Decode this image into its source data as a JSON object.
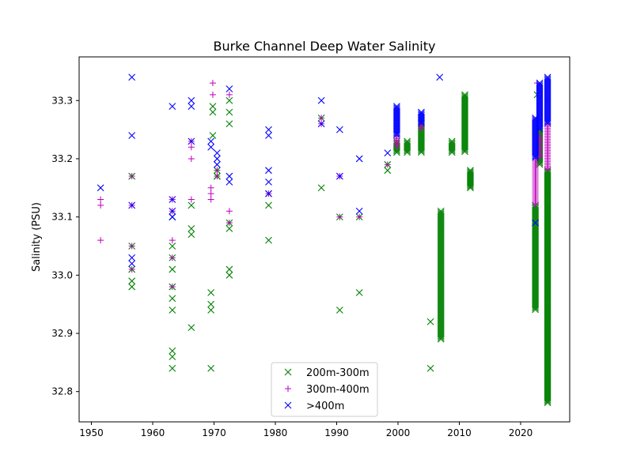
{
  "chart_data": {
    "type": "scatter",
    "title": "Burke Channel Deep Water Salinity",
    "xlabel": "",
    "ylabel": "Salinity (PSU)",
    "xlim": [
      1948,
      2028
    ],
    "ylim": [
      32.748,
      33.375
    ],
    "x_ticks": [
      1950,
      1960,
      1970,
      1980,
      1990,
      2000,
      2010,
      2020
    ],
    "x_tick_labels": [
      "1950",
      "1960",
      "1970",
      "1980",
      "1990",
      "2000",
      "2010",
      "2020"
    ],
    "y_ticks": [
      32.8,
      32.9,
      33.0,
      33.1,
      33.2,
      33.3
    ],
    "y_tick_labels": [
      "32.8",
      "32.9",
      "33.0",
      "33.1",
      "33.2",
      "33.3"
    ],
    "grid": false,
    "legend_position": "lower center",
    "series": [
      {
        "name": "200m-300m",
        "marker": "x",
        "color": "#008000",
        "points": [
          [
            1956.6,
            33.05
          ],
          [
            1956.6,
            33.01
          ],
          [
            1956.6,
            32.99
          ],
          [
            1956.6,
            32.98
          ],
          [
            1956.6,
            33.17
          ],
          [
            1963.2,
            33.05
          ],
          [
            1963.2,
            33.03
          ],
          [
            1963.2,
            33.01
          ],
          [
            1963.2,
            32.98
          ],
          [
            1963.2,
            32.96
          ],
          [
            1963.2,
            32.94
          ],
          [
            1963.2,
            32.87
          ],
          [
            1963.2,
            32.86
          ],
          [
            1963.2,
            32.84
          ],
          [
            1963.2,
            33.1
          ],
          [
            1966.3,
            33.08
          ],
          [
            1966.3,
            33.07
          ],
          [
            1966.3,
            32.91
          ],
          [
            1966.3,
            33.12
          ],
          [
            1969.5,
            32.97
          ],
          [
            1969.5,
            32.95
          ],
          [
            1969.5,
            32.94
          ],
          [
            1969.5,
            32.84
          ],
          [
            1969.8,
            33.29
          ],
          [
            1969.8,
            33.28
          ],
          [
            1969.8,
            33.24
          ],
          [
            1970.5,
            33.18
          ],
          [
            1970.5,
            33.17
          ],
          [
            1970.5,
            33.17
          ],
          [
            1972.5,
            33.3
          ],
          [
            1972.5,
            33.28
          ],
          [
            1972.5,
            33.26
          ],
          [
            1972.5,
            33.09
          ],
          [
            1972.5,
            33.08
          ],
          [
            1972.5,
            33.01
          ],
          [
            1972.5,
            33.0
          ],
          [
            1978.9,
            33.14
          ],
          [
            1978.9,
            33.12
          ],
          [
            1978.9,
            33.06
          ],
          [
            1987.5,
            33.27
          ],
          [
            1987.5,
            33.15
          ],
          [
            1990.5,
            33.1
          ],
          [
            1990.5,
            32.94
          ],
          [
            1993.7,
            33.1
          ],
          [
            1993.7,
            32.97
          ],
          [
            1998.3,
            33.19
          ],
          [
            1998.3,
            33.18
          ],
          [
            2005.3,
            32.92
          ],
          [
            2005.3,
            32.84
          ],
          [
            2022.7,
            33.31
          ]
        ],
        "vertical_clusters": [
          {
            "x": 1999.8,
            "y_min": 33.21,
            "y_max": 33.23
          },
          {
            "x": 2001.5,
            "y_min": 33.21,
            "y_max": 33.23
          },
          {
            "x": 2003.8,
            "y_min": 33.21,
            "y_max": 33.26
          },
          {
            "x": 2007.0,
            "y_min": 32.89,
            "y_max": 33.11
          },
          {
            "x": 2008.8,
            "y_min": 33.21,
            "y_max": 33.23
          },
          {
            "x": 2010.9,
            "y_min": 33.21,
            "y_max": 33.31
          },
          {
            "x": 2011.8,
            "y_min": 33.15,
            "y_max": 33.18
          },
          {
            "x": 2022.4,
            "y_min": 32.94,
            "y_max": 33.12
          },
          {
            "x": 2023.1,
            "y_min": 33.19,
            "y_max": 33.25
          },
          {
            "x": 2024.4,
            "y_min": 32.78,
            "y_max": 33.18
          }
        ]
      },
      {
        "name": "300m-400m",
        "marker": "+",
        "color": "#bf00bf",
        "points": [
          [
            1951.5,
            33.13
          ],
          [
            1951.5,
            33.12
          ],
          [
            1951.5,
            33.06
          ],
          [
            1956.6,
            33.17
          ],
          [
            1956.6,
            33.12
          ],
          [
            1956.6,
            33.05
          ],
          [
            1956.6,
            33.01
          ],
          [
            1963.2,
            33.13
          ],
          [
            1963.2,
            33.11
          ],
          [
            1963.2,
            33.06
          ],
          [
            1963.2,
            33.03
          ],
          [
            1963.2,
            32.98
          ],
          [
            1966.3,
            33.23
          ],
          [
            1966.3,
            33.22
          ],
          [
            1966.3,
            33.2
          ],
          [
            1966.3,
            33.13
          ],
          [
            1969.5,
            33.15
          ],
          [
            1969.5,
            33.14
          ],
          [
            1969.5,
            33.13
          ],
          [
            1969.8,
            33.33
          ],
          [
            1969.8,
            33.31
          ],
          [
            1970.5,
            33.18
          ],
          [
            1970.5,
            33.17
          ],
          [
            1972.5,
            33.31
          ],
          [
            1972.5,
            33.11
          ],
          [
            1972.5,
            33.09
          ],
          [
            1978.9,
            33.14
          ],
          [
            1987.5,
            33.27
          ],
          [
            1987.5,
            33.26
          ],
          [
            1990.5,
            33.17
          ],
          [
            1990.5,
            33.1
          ],
          [
            1993.7,
            33.1
          ],
          [
            1998.3,
            33.19
          ],
          [
            2022.7,
            33.33
          ]
        ],
        "vertical_clusters": [
          {
            "x": 1999.8,
            "y_min": 33.22,
            "y_max": 33.24
          },
          {
            "x": 2003.8,
            "y_min": 33.25,
            "y_max": 33.26
          },
          {
            "x": 2022.4,
            "y_min": 33.12,
            "y_max": 33.2
          },
          {
            "x": 2023.1,
            "y_min": 33.2,
            "y_max": 33.24
          },
          {
            "x": 2024.4,
            "y_min": 33.18,
            "y_max": 33.26
          }
        ]
      },
      {
        "name": ">400m",
        "marker": "x",
        "color": "#0000ff",
        "points": [
          [
            1951.5,
            33.15
          ],
          [
            1956.6,
            33.34
          ],
          [
            1956.6,
            33.24
          ],
          [
            1956.6,
            33.12
          ],
          [
            1956.6,
            33.03
          ],
          [
            1956.6,
            33.02
          ],
          [
            1963.2,
            33.29
          ],
          [
            1963.2,
            33.13
          ],
          [
            1963.2,
            33.11
          ],
          [
            1963.2,
            33.1
          ],
          [
            1963.2,
            33.1
          ],
          [
            1966.3,
            33.3
          ],
          [
            1966.3,
            33.29
          ],
          [
            1966.3,
            33.23
          ],
          [
            1969.5,
            33.23
          ],
          [
            1969.5,
            33.22
          ],
          [
            1970.5,
            33.21
          ],
          [
            1970.5,
            33.2
          ],
          [
            1970.5,
            33.19
          ],
          [
            1972.5,
            33.32
          ],
          [
            1972.5,
            33.17
          ],
          [
            1972.5,
            33.16
          ],
          [
            1978.9,
            33.25
          ],
          [
            1978.9,
            33.24
          ],
          [
            1978.9,
            33.18
          ],
          [
            1978.9,
            33.16
          ],
          [
            1978.9,
            33.14
          ],
          [
            1987.5,
            33.3
          ],
          [
            1987.5,
            33.26
          ],
          [
            1990.5,
            33.25
          ],
          [
            1990.5,
            33.17
          ],
          [
            1993.7,
            33.2
          ],
          [
            1993.7,
            33.11
          ],
          [
            1998.3,
            33.21
          ],
          [
            2006.8,
            33.34
          ],
          [
            2022.4,
            33.09
          ]
        ],
        "vertical_clusters": [
          {
            "x": 1999.8,
            "y_min": 33.24,
            "y_max": 33.29
          },
          {
            "x": 2003.8,
            "y_min": 33.26,
            "y_max": 33.28
          },
          {
            "x": 2022.4,
            "y_min": 33.2,
            "y_max": 33.27
          },
          {
            "x": 2023.1,
            "y_min": 33.25,
            "y_max": 33.33
          },
          {
            "x": 2024.4,
            "y_min": 33.26,
            "y_max": 33.34
          }
        ]
      }
    ]
  }
}
